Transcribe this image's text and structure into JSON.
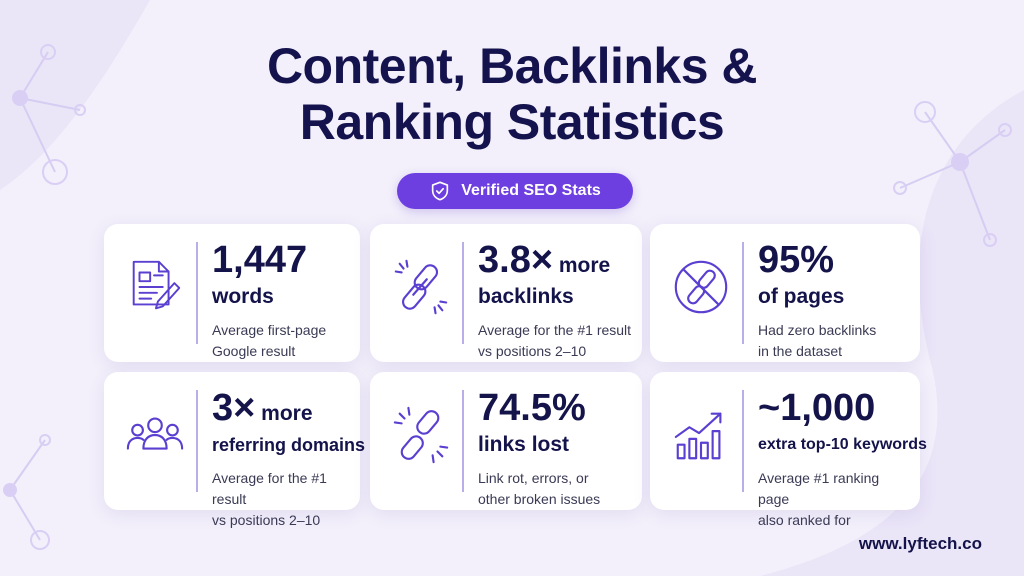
{
  "title": {
    "line1": "Content, Backlinks &",
    "line2": "Ranking Statistics"
  },
  "badge": {
    "label": "Verified SEO Stats",
    "icon": "shield-check-icon"
  },
  "cards": [
    {
      "icon": "document-pen-icon",
      "number": "1,447",
      "suffix": "",
      "label": "words",
      "desc1": "Average first-page",
      "desc2": "Google result"
    },
    {
      "icon": "chain-link-icon",
      "number": "3.8×",
      "suffix": " more",
      "label": "backlinks",
      "desc1": "Average for the #1 result",
      "desc2": "vs positions 2–10"
    },
    {
      "icon": "no-link-icon",
      "number": "95%",
      "suffix": "",
      "label": "of pages",
      "desc1": "Had zero backlinks",
      "desc2": "in the dataset"
    },
    {
      "icon": "group-people-icon",
      "number": "3×",
      "suffix": " more",
      "label": "referring domains",
      "desc1": "Average for the #1 result",
      "desc2": "vs positions 2–10"
    },
    {
      "icon": "broken-link-icon",
      "number": "74.5%",
      "suffix": "",
      "label": "links lost",
      "desc1": "Link rot, errors, or",
      "desc2": "other broken issues"
    },
    {
      "icon": "growth-chart-icon",
      "number": "~1,000",
      "suffix": "",
      "label": "extra top-10 keywords",
      "desc1": "Average #1 ranking page",
      "desc2": "also ranked for"
    }
  ],
  "footer": {
    "url": "www.lyftech.co"
  },
  "colors": {
    "background": "#f3f0fb",
    "accent": "#6d3fe0",
    "text": "#14134a",
    "icon": "#5a3fd0"
  }
}
